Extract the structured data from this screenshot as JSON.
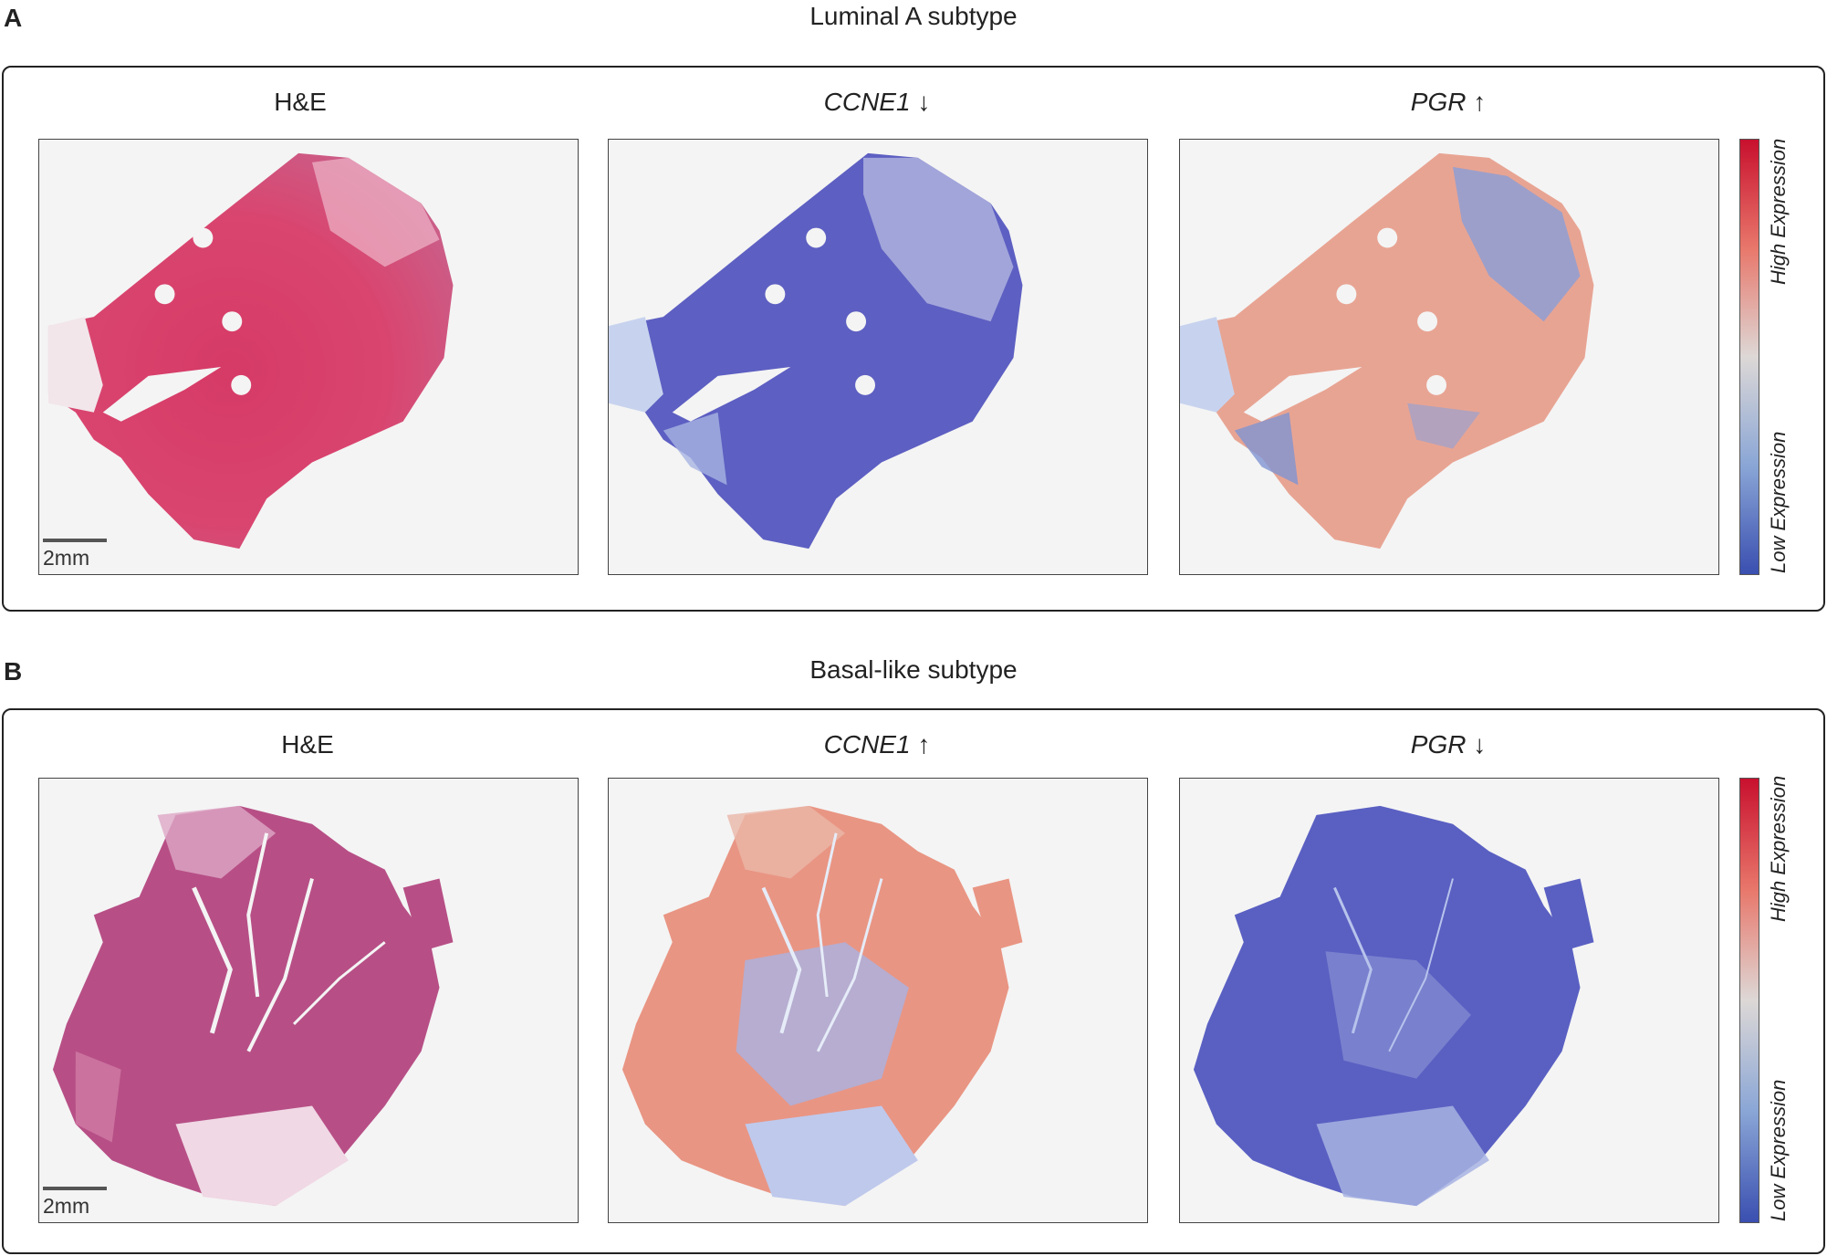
{
  "panels": [
    {
      "letter": "A",
      "title": "Luminal A subtype",
      "columns": [
        {
          "label": "H&E",
          "gene": "",
          "arrow": ""
        },
        {
          "label": "",
          "gene": "CCNE1",
          "arrow": "↓"
        },
        {
          "label": "",
          "gene": "PGR",
          "arrow": "↑"
        }
      ],
      "scale_label": "2mm",
      "colorbar": {
        "high": "High Expression",
        "low": "Low Expression"
      }
    },
    {
      "letter": "B",
      "title": "Basal-like subtype",
      "columns": [
        {
          "label": "H&E",
          "gene": "",
          "arrow": ""
        },
        {
          "label": "",
          "gene": "CCNE1",
          "arrow": "↑"
        },
        {
          "label": "",
          "gene": "PGR",
          "arrow": "↓"
        }
      ],
      "scale_label": "2mm",
      "colorbar": {
        "high": "High Expression",
        "low": "Low Expression"
      }
    }
  ],
  "colors": {
    "he_pink": "#d8406a",
    "he_light": "#e8a7c0",
    "low_blue": "#5b5fc4",
    "high_red": "#e57a68",
    "neutral": "#d9dcef"
  }
}
